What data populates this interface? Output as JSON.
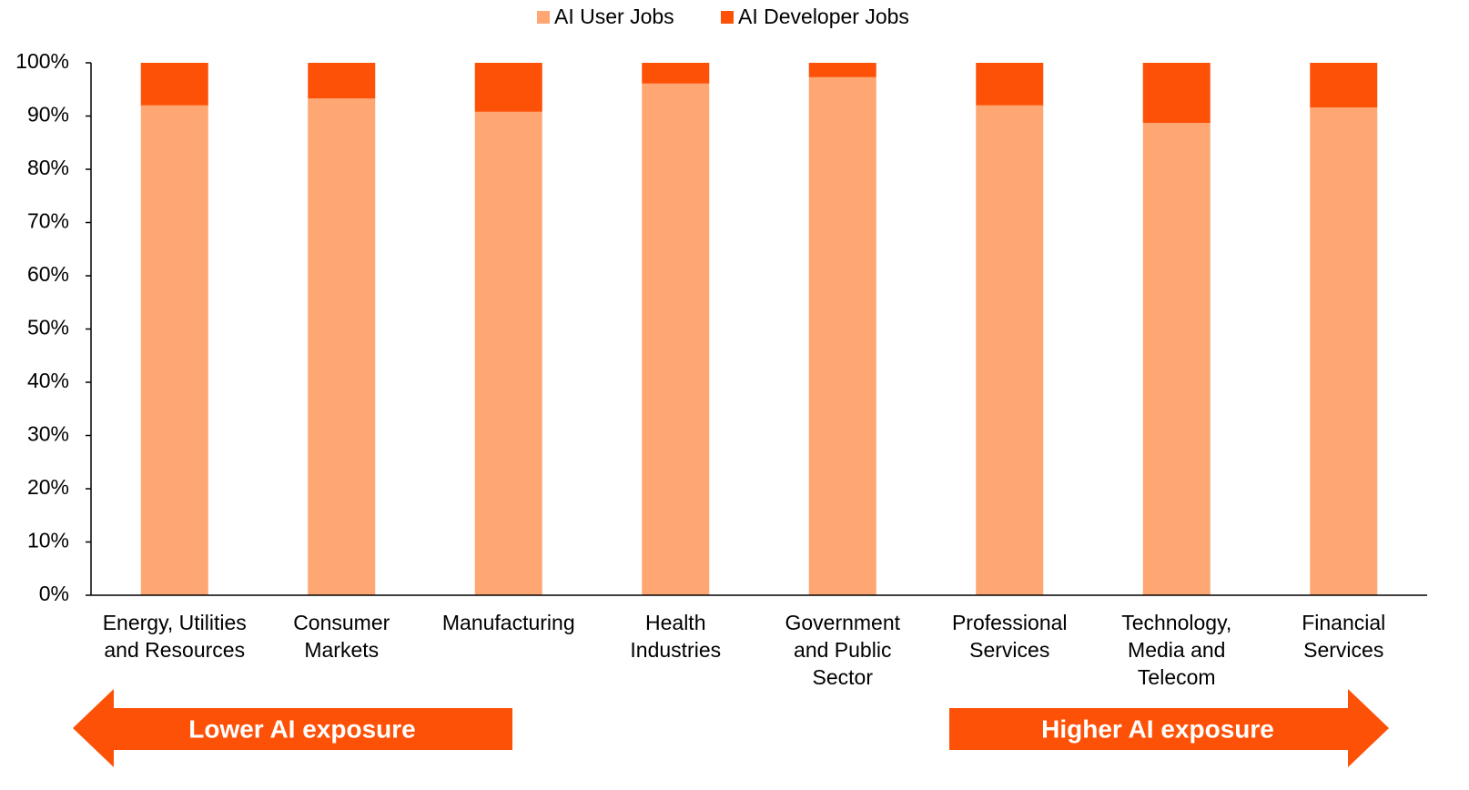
{
  "chart_data": {
    "type": "stacked_bar",
    "categories": [
      [
        "Energy, Utilities",
        "and Resources"
      ],
      [
        "Consumer",
        "Markets"
      ],
      [
        "Manufacturing"
      ],
      [
        "Health",
        "Industries"
      ],
      [
        "Government",
        "and Public",
        "Sector"
      ],
      [
        "Professional",
        "Services"
      ],
      [
        "Technology,",
        "Media and",
        "Telecom"
      ],
      [
        "Financial",
        "Services"
      ]
    ],
    "series": [
      {
        "name": "AI User Jobs",
        "color": "#fea772",
        "values": [
          92.0,
          93.3,
          90.8,
          96.1,
          97.3,
          92.0,
          88.7,
          91.6
        ]
      },
      {
        "name": "AI Developer Jobs",
        "color": "#fd5108",
        "values": [
          8.0,
          6.7,
          9.2,
          3.9,
          2.7,
          8.0,
          11.3,
          8.4
        ]
      }
    ],
    "ylim": [
      0,
      100
    ],
    "yticks": [
      {
        "value": 0,
        "label": "0%"
      },
      {
        "value": 10,
        "label": "10%"
      },
      {
        "value": 20,
        "label": "20%"
      },
      {
        "value": 30,
        "label": "30%"
      },
      {
        "value": 40,
        "label": "40%"
      },
      {
        "value": 50,
        "label": "50%"
      },
      {
        "value": 60,
        "label": "60%"
      },
      {
        "value": 70,
        "label": "70%"
      },
      {
        "value": 80,
        "label": "80%"
      },
      {
        "value": 90,
        "label": "90%"
      },
      {
        "value": 100,
        "label": "100%"
      }
    ],
    "grid": false,
    "legend": "top",
    "annotations": [
      "Lower AI exposure",
      "Higher AI exposure"
    ]
  }
}
